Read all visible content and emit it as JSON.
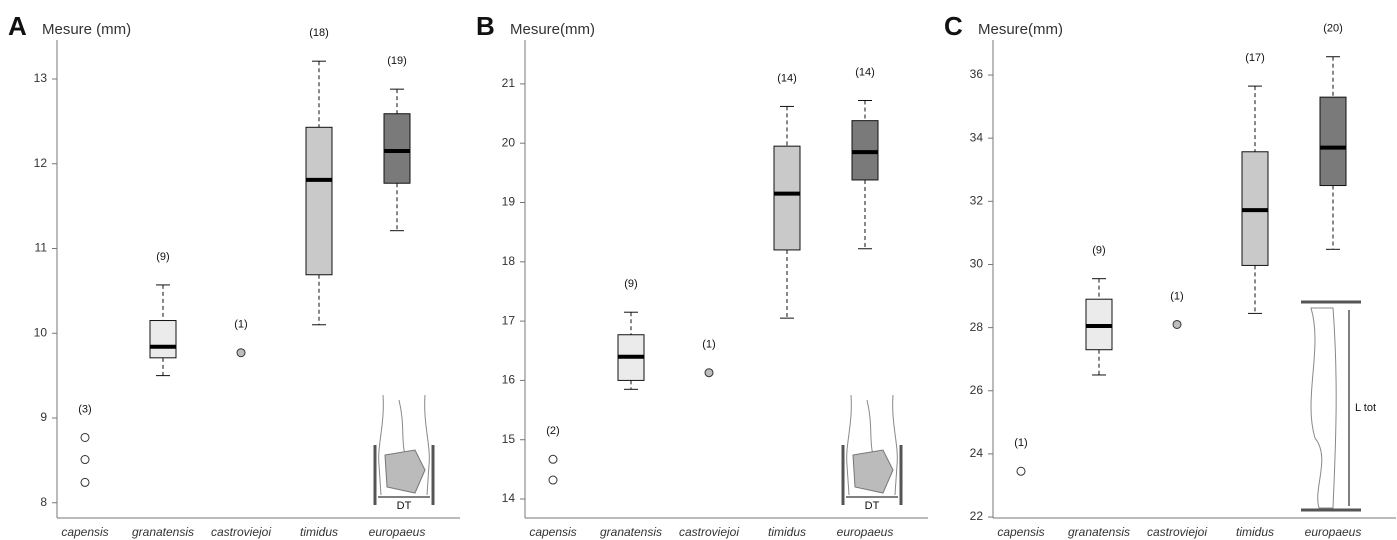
{
  "chart_data": [
    {
      "type": "box",
      "panel_label": "A",
      "y_label": "Mesure (mm)",
      "categories": [
        "capensis",
        "granatensis",
        "castroviejoi",
        "timidus",
        "europaeus"
      ],
      "sample_sizes": {
        "values": [
          3,
          9,
          1,
          18,
          19
        ],
        "value_labels": [
          "(3)",
          "(9)",
          "(1)",
          "(18)",
          "(19)"
        ]
      },
      "boxes": [
        null,
        {
          "whisker_low": 9.5,
          "q1": 9.71,
          "median": 9.84,
          "q3": 10.15,
          "whisker_high": 10.57,
          "color": "#ebebeb"
        },
        null,
        {
          "whisker_low": 10.1,
          "q1": 10.69,
          "median": 11.81,
          "q3": 12.43,
          "whisker_high": 13.21,
          "color": "#c9c9c9"
        },
        {
          "whisker_low": 11.21,
          "q1": 11.77,
          "median": 12.15,
          "q3": 12.59,
          "whisker_high": 12.88,
          "color": "#7a7a7a"
        }
      ],
      "points": [
        {
          "values": [
            8.77,
            8.51,
            8.24
          ],
          "color": "#ffffff"
        },
        null,
        {
          "values": [
            9.77
          ],
          "color": "#bdbdbd"
        },
        null,
        null
      ],
      "ylim": [
        7.82,
        13.46
      ],
      "yticks": [
        8,
        9,
        10,
        11,
        12,
        13
      ],
      "inset": {
        "label": "DT",
        "orientation": "horizontal"
      }
    },
    {
      "type": "box",
      "panel_label": "B",
      "y_label": "Mesure(mm)",
      "categories": [
        "capensis",
        "granatensis",
        "castroviejoi",
        "timidus",
        "europaeus"
      ],
      "sample_sizes": {
        "values": [
          2,
          9,
          1,
          14,
          14
        ],
        "value_labels": [
          "(2)",
          "(9)",
          "(1)",
          "(14)",
          "(14)"
        ]
      },
      "boxes": [
        null,
        {
          "whisker_low": 15.85,
          "q1": 16.0,
          "median": 16.4,
          "q3": 16.77,
          "whisker_high": 17.15,
          "color": "#ebebeb"
        },
        null,
        {
          "whisker_low": 17.05,
          "q1": 18.2,
          "median": 19.15,
          "q3": 19.95,
          "whisker_high": 20.62,
          "color": "#c9c9c9"
        },
        {
          "whisker_low": 18.22,
          "q1": 19.38,
          "median": 19.85,
          "q3": 20.38,
          "whisker_high": 20.72,
          "color": "#7a7a7a"
        }
      ],
      "points": [
        {
          "values": [
            14.67,
            14.32
          ],
          "color": "#ffffff"
        },
        null,
        {
          "values": [
            16.13
          ],
          "color": "#bdbdbd"
        },
        null,
        null
      ],
      "ylim": [
        13.68,
        21.74
      ],
      "yticks": [
        14,
        15,
        16,
        17,
        18,
        19,
        20,
        21
      ],
      "inset": {
        "label": "DT",
        "orientation": "horizontal"
      }
    },
    {
      "type": "box",
      "panel_label": "C",
      "y_label": "Mesure(mm)",
      "categories": [
        "capensis",
        "granatensis",
        "castroviejoi",
        "timidus",
        "europaeus"
      ],
      "sample_sizes": {
        "values": [
          1,
          9,
          1,
          17,
          20
        ],
        "value_labels": [
          "(1)",
          "(9)",
          "(1)",
          "(17)",
          "(20)"
        ]
      },
      "boxes": [
        null,
        {
          "whisker_low": 26.5,
          "q1": 27.3,
          "median": 28.05,
          "q3": 28.9,
          "whisker_high": 29.55,
          "color": "#ebebeb"
        },
        null,
        {
          "whisker_low": 28.45,
          "q1": 29.97,
          "median": 31.72,
          "q3": 33.57,
          "whisker_high": 35.65,
          "color": "#c9c9c9"
        },
        {
          "whisker_low": 30.48,
          "q1": 32.5,
          "median": 33.7,
          "q3": 35.3,
          "whisker_high": 36.58,
          "color": "#7a7a7a"
        }
      ],
      "points": [
        {
          "values": [
            23.45
          ],
          "color": "#ffffff"
        },
        null,
        {
          "values": [
            28.1
          ],
          "color": "#bdbdbd"
        },
        null,
        null
      ],
      "ylim": [
        21.97,
        37.11
      ],
      "yticks": [
        22,
        24,
        26,
        28,
        30,
        32,
        34,
        36
      ],
      "inset": {
        "label": "L tot",
        "orientation": "vertical"
      }
    }
  ]
}
